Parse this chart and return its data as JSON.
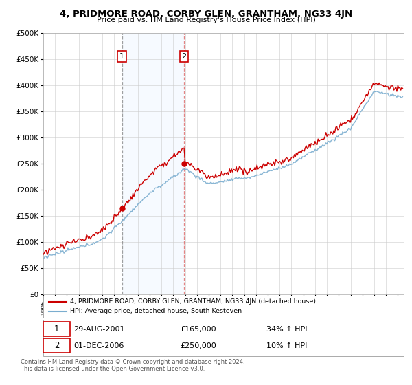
{
  "title": "4, PRIDMORE ROAD, CORBY GLEN, GRANTHAM, NG33 4JN",
  "subtitle": "Price paid vs. HM Land Registry's House Price Index (HPI)",
  "sale1_date": "29-AUG-2001",
  "sale1_price": 165000,
  "sale1_label": "34% ↑ HPI",
  "sale2_date": "01-DEC-2006",
  "sale2_price": 250000,
  "sale2_label": "10% ↑ HPI",
  "legend_line1": "4, PRIDMORE ROAD, CORBY GLEN, GRANTHAM, NG33 4JN (detached house)",
  "legend_line2": "HPI: Average price, detached house, South Kesteven",
  "footnote": "Contains HM Land Registry data © Crown copyright and database right 2024.\nThis data is licensed under the Open Government Licence v3.0.",
  "line_color_price": "#cc0000",
  "line_color_hpi": "#7aadcf",
  "sale_marker_color": "#cc0000",
  "highlight_color": "#ddeeff",
  "ymin": 0,
  "ymax": 500000,
  "yticks": [
    0,
    50000,
    100000,
    150000,
    200000,
    250000,
    300000,
    350000,
    400000,
    450000,
    500000
  ],
  "ytick_labels": [
    "£0",
    "£50K",
    "£100K",
    "£150K",
    "£200K",
    "£250K",
    "£300K",
    "£350K",
    "£400K",
    "£450K",
    "£500K"
  ],
  "sale1_t": 2001.667,
  "sale2_t": 2006.917,
  "xmin": 1995,
  "xmax": 2025.5
}
